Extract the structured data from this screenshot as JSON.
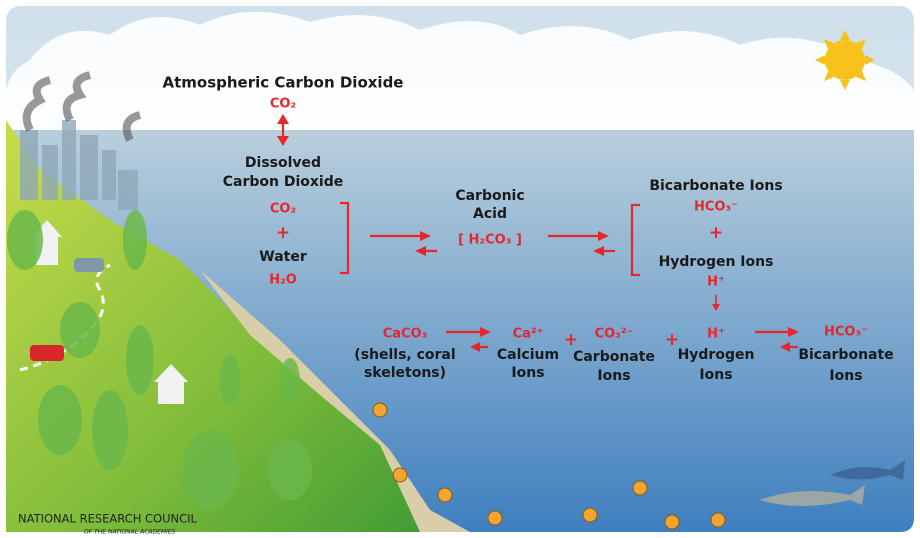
{
  "atmosphere": {
    "label": "Atmospheric Carbon Dioxide",
    "formula": "CO₂"
  },
  "dissolved": {
    "label": [
      "Dissolved",
      "Carbon Dioxide"
    ],
    "formula": "CO₂",
    "plus": "+",
    "water": "Water",
    "water_formula": "H₂O"
  },
  "carbonic_acid": {
    "label": [
      "Carbonic",
      "Acid"
    ],
    "formula": "[ H₂CO₃ ]"
  },
  "ions": {
    "bicarbonate": "Bicarbonate Ions",
    "bicarbonate_formula": "HCO₃⁻",
    "plus": "+",
    "hydrogen": "Hydrogen Ions",
    "hydrogen_formula": "H⁺"
  },
  "bottom": [
    {
      "formula": "CaCO₃",
      "label": [
        "(shells, coral",
        "skeletons)"
      ]
    },
    {
      "formula": "Ca²⁺",
      "label": [
        "Calcium",
        "Ions"
      ]
    },
    {
      "formula": "CO₃²⁻",
      "label": [
        "Carbonate",
        "Ions"
      ]
    },
    {
      "formula": "H⁺",
      "label": [
        "Hydrogen",
        "Ions"
      ]
    },
    {
      "formula": "HCO₃⁻",
      "label": [
        "Bicarbonate",
        "Ions"
      ]
    }
  ],
  "bottom_plus": [
    "+",
    "+"
  ],
  "credit": {
    "name": "NATIONAL RESEARCH COUNCIL",
    "sub": "OF THE NATIONAL ACADEMIES"
  }
}
